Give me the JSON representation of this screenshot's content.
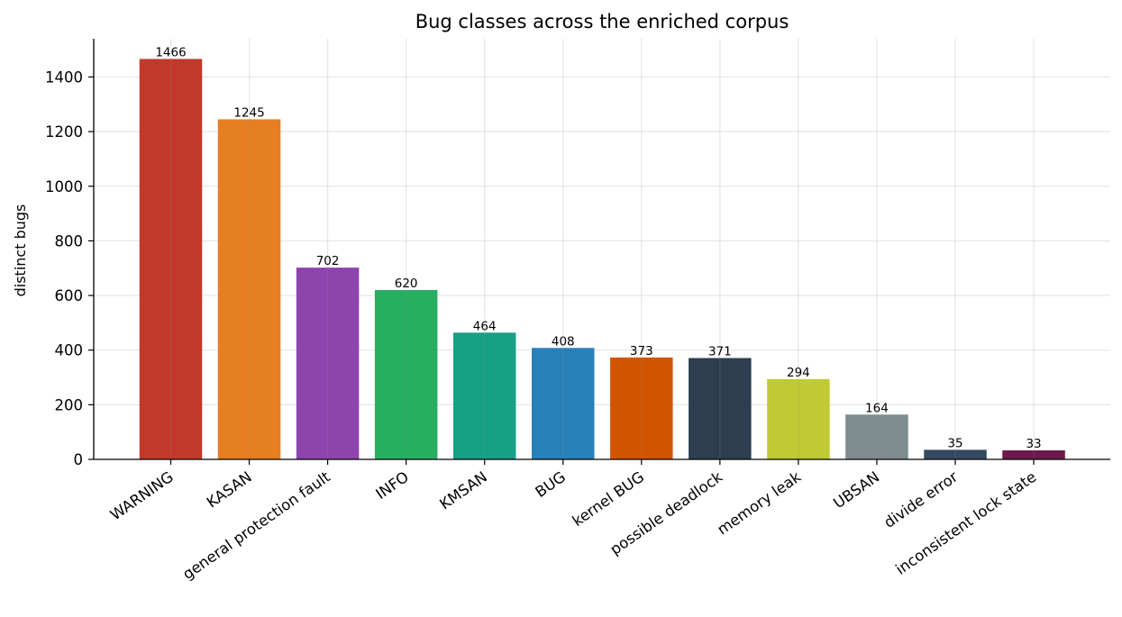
{
  "chart_data": {
    "type": "bar",
    "title": "Bug classes across the enriched corpus",
    "xlabel": "",
    "ylabel": "distinct bugs",
    "categories": [
      "WARNING",
      "KASAN",
      "general protection fault",
      "INFO",
      "KMSAN",
      "BUG",
      "kernel BUG",
      "possible deadlock",
      "memory leak",
      "UBSAN",
      "divide error",
      "inconsistent lock state"
    ],
    "values": [
      1466,
      1245,
      702,
      620,
      464,
      408,
      373,
      371,
      294,
      164,
      35,
      33
    ],
    "value_labels": [
      "1466",
      "1245",
      "702",
      "620",
      "464",
      "408",
      "373",
      "371",
      "294",
      "164",
      "35",
      "33"
    ],
    "colors": [
      "#c0392b",
      "#e67e22",
      "#8e44ad",
      "#27ae60",
      "#16a085",
      "#2980b9",
      "#d35400",
      "#2c3e50",
      "#c0ca33",
      "#7f8c8d",
      "#34495e",
      "#6d1a4a"
    ],
    "yticks": [
      0,
      200,
      400,
      600,
      800,
      1000,
      1200,
      1400
    ],
    "ytick_labels": [
      "0",
      "200",
      "400",
      "600",
      "800",
      "1000",
      "1200",
      "1400"
    ],
    "ylim": [
      0,
      1540
    ],
    "grid": true,
    "legend": false
  }
}
